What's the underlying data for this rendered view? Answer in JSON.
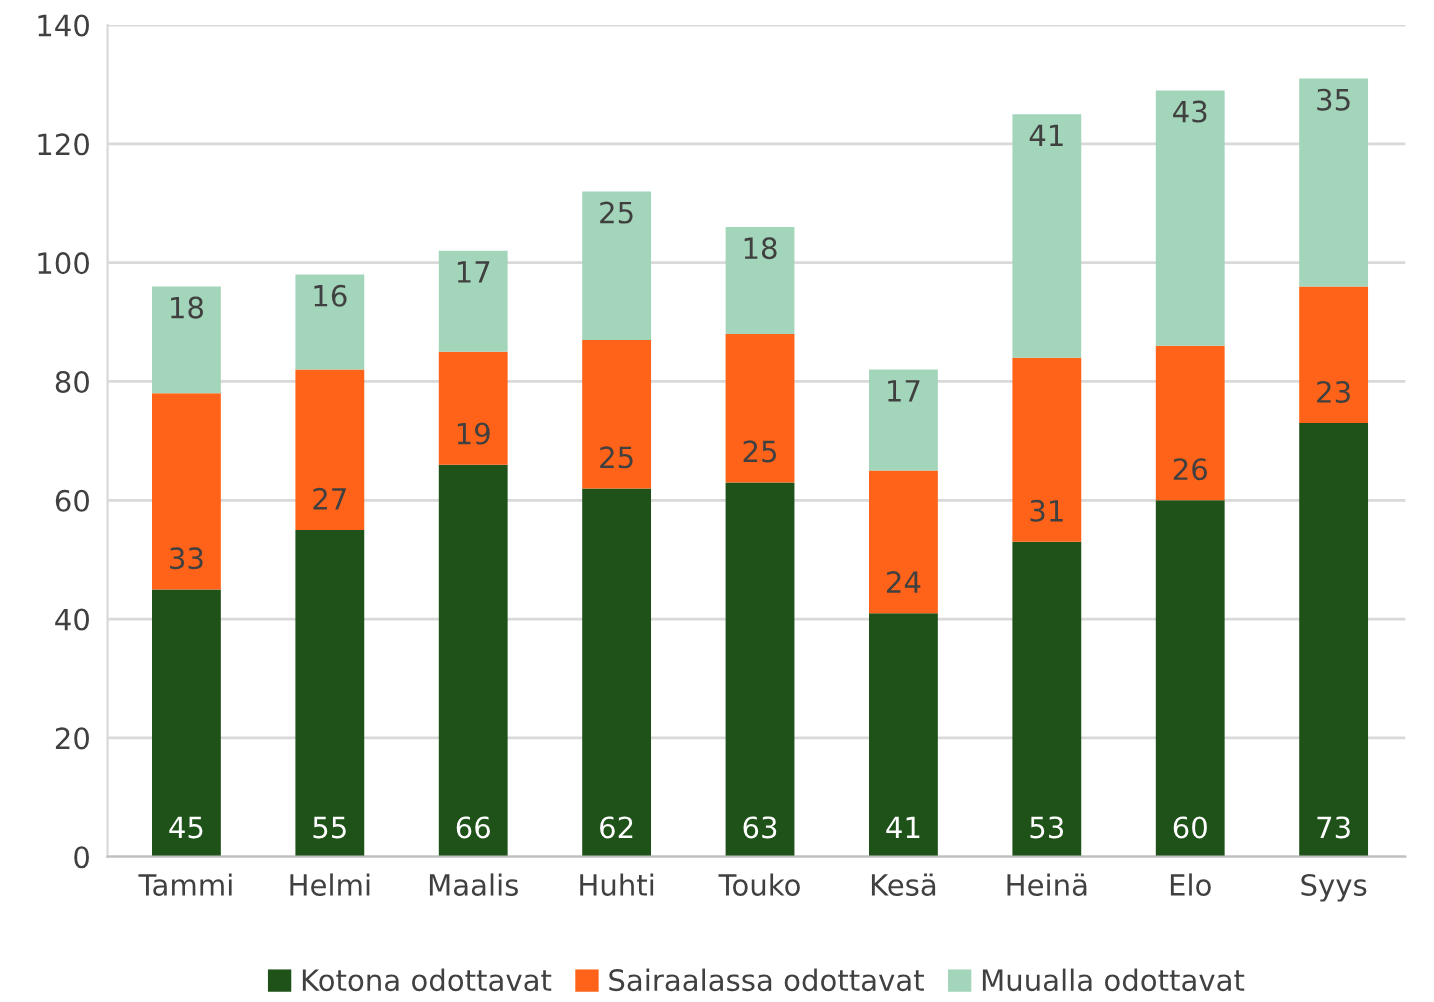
{
  "chart_data": {
    "type": "bar",
    "stacked": true,
    "categories": [
      "Tammi",
      "Helmi",
      "Maalis",
      "Huhti",
      "Touko",
      "Kesä",
      "Heinä",
      "Elo",
      "Syys"
    ],
    "series": [
      {
        "name": "Kotona odottavat",
        "color": "#1e5219",
        "values": [
          45,
          55,
          66,
          62,
          63,
          41,
          53,
          60,
          73
        ]
      },
      {
        "name": "Sairaalassa odottavat",
        "color": "#ff6319",
        "values": [
          33,
          27,
          19,
          25,
          25,
          24,
          31,
          26,
          23
        ]
      },
      {
        "name": "Muualla odottavat",
        "color": "#a2d5b9",
        "values": [
          18,
          16,
          17,
          25,
          18,
          17,
          41,
          43,
          35
        ]
      }
    ],
    "ylim": [
      0,
      140
    ],
    "yticks": [
      0,
      20,
      40,
      60,
      80,
      100,
      120,
      140
    ],
    "grid": "y",
    "legend": "bottom",
    "data_labels": true
  }
}
